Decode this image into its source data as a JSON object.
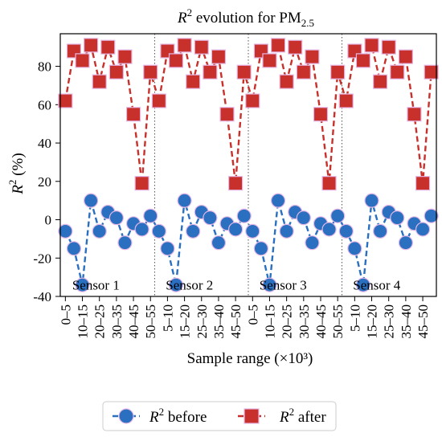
{
  "chart_data": {
    "type": "line",
    "title_main": "R",
    "title_sup": "2",
    "title_mid": " evolution for PM",
    "title_sub": "2.5",
    "xlabel": "Sample range (×10³)",
    "ylabel_main": "R",
    "ylabel_sup": "2",
    "ylabel_rest": " (%)",
    "ylim": [
      -40,
      97
    ],
    "yticks": [
      -40,
      -20,
      0,
      20,
      40,
      60,
      80
    ],
    "categories": [
      "0–5",
      "10–15",
      "20–25",
      "30–35",
      "40–45",
      "50–55",
      "5–10",
      "15–20",
      "25–30",
      "35–40",
      "45–50",
      "0–5",
      "10–15",
      "20–25",
      "30–35",
      "40–45",
      "50–55",
      "5–10",
      "15–20",
      "25–30",
      "35–40",
      "45–50"
    ],
    "tick_positions": [
      0,
      2,
      4,
      6,
      8,
      10,
      12,
      14,
      16,
      18,
      20,
      22,
      24,
      26,
      28,
      30,
      32,
      34,
      36,
      38,
      40,
      42
    ],
    "sensor_boundaries": [
      10.5,
      21.5,
      32.5
    ],
    "sensor_labels": [
      "Sensor 1",
      "Sensor 2",
      "Sensor 3",
      "Sensor 4"
    ],
    "sensor_label_x": [
      0.8,
      11.8,
      22.8,
      33.8
    ],
    "sensor_label_y": -34,
    "series": [
      {
        "name": "before",
        "legend_main": "R",
        "legend_sup": "2",
        "legend_rest": " before",
        "color": "#2a6fc0",
        "marker": "circle",
        "x": [
          0,
          1,
          2,
          3,
          4,
          5,
          6,
          7,
          8,
          9,
          10,
          11,
          12,
          13,
          14,
          15,
          16,
          17,
          18,
          19,
          20,
          21,
          22,
          23,
          24,
          25,
          26,
          27,
          28,
          29,
          30,
          31,
          32,
          33,
          34,
          35,
          36,
          37,
          38,
          39,
          40,
          41,
          42,
          43
        ],
        "values": [
          -6,
          -15,
          -34,
          10,
          -6,
          4,
          1,
          -12,
          -2,
          -5,
          2,
          -6,
          -15,
          -34,
          10,
          -6,
          4,
          1,
          -12,
          -2,
          -5,
          2,
          -6,
          -15,
          -34,
          10,
          -6,
          4,
          1,
          -12,
          -2,
          -5,
          2,
          -6,
          -15,
          -34,
          10,
          -6,
          4,
          1,
          -12,
          -2,
          -5,
          2
        ]
      },
      {
        "name": "after",
        "legend_main": "R",
        "legend_sup": "2",
        "legend_rest": " after",
        "color": "#c8312b",
        "marker": "square",
        "x": [
          0,
          1,
          2,
          3,
          4,
          5,
          6,
          7,
          8,
          9,
          10,
          11,
          12,
          13,
          14,
          15,
          16,
          17,
          18,
          19,
          20,
          21,
          22,
          23,
          24,
          25,
          26,
          27,
          28,
          29,
          30,
          31,
          32,
          33,
          34,
          35,
          36,
          37,
          38,
          39,
          40,
          41,
          42,
          43
        ],
        "values": [
          62,
          88,
          83,
          91,
          72,
          90,
          77,
          85,
          55,
          19,
          77,
          62,
          88,
          83,
          91,
          72,
          90,
          77,
          85,
          55,
          19,
          77,
          62,
          88,
          83,
          91,
          72,
          90,
          77,
          85,
          55,
          19,
          77,
          62,
          88,
          83,
          91,
          72,
          90,
          77,
          85,
          55,
          19,
          77
        ]
      }
    ]
  }
}
